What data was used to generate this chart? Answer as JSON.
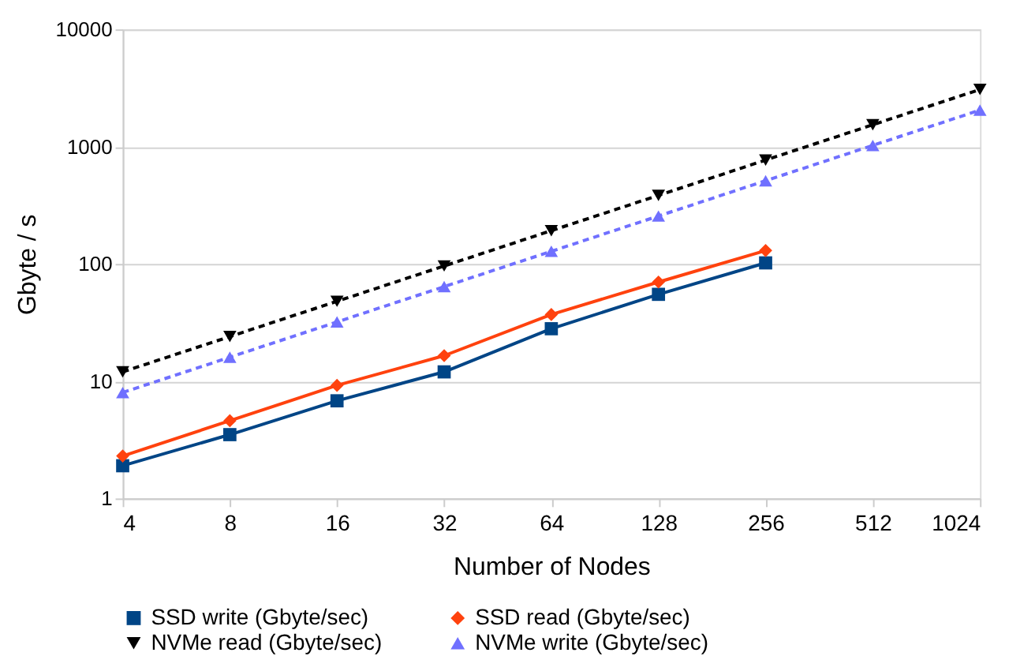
{
  "chart_data": {
    "type": "line",
    "xlabel": "Number of Nodes",
    "ylabel": "Gbyte / s",
    "categories": [
      "4",
      "8",
      "16",
      "32",
      "64",
      "128",
      "256",
      "512",
      "1024"
    ],
    "series": [
      {
        "name": "SSD write (Gbyte/sec)",
        "color": "#004586",
        "marker": "square",
        "line_style": "solid",
        "values": [
          1.9,
          3.5,
          6.8,
          12,
          28,
          55,
          102,
          null,
          null
        ]
      },
      {
        "name": "SSD read (Gbyte/sec)",
        "color": "#ff420e",
        "marker": "diamond",
        "line_style": "solid",
        "values": [
          2.3,
          4.6,
          9.2,
          16.5,
          37,
          70,
          130,
          null,
          null
        ]
      },
      {
        "name": "NVMe read (Gbyte/sec)",
        "color": "#000000",
        "marker": "triangle-down",
        "line_style": "dashed",
        "values": [
          12,
          24,
          48,
          96,
          192,
          384,
          768,
          1536,
          3072
        ]
      },
      {
        "name": "NVMe write (Gbyte/sec)",
        "color": "#7070ff",
        "marker": "triangle-up",
        "line_style": "dashed",
        "values": [
          8,
          16,
          32,
          64,
          128,
          256,
          512,
          1024,
          2048
        ]
      }
    ],
    "log": "y",
    "ylim": [
      1,
      10000
    ],
    "yticks": [
      1,
      10,
      100,
      1000,
      10000
    ],
    "grid": "y",
    "legend": "bottom"
  }
}
